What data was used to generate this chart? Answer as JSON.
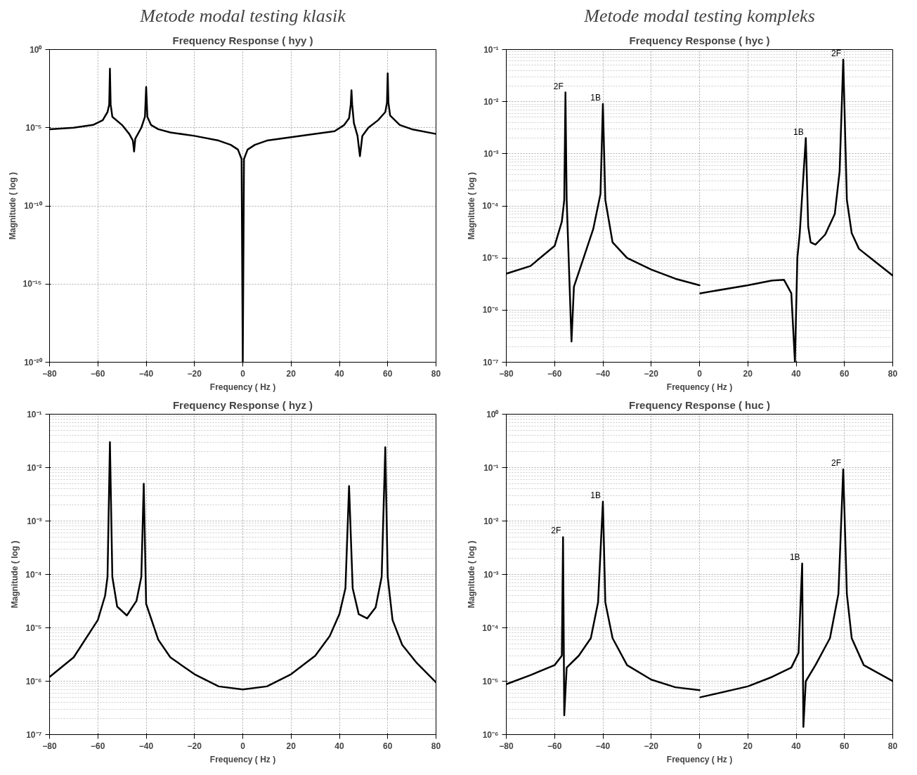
{
  "chart_data": [
    {
      "type": "line",
      "title": "Metode modal testing klasik",
      "subtitle": "Frequency Response ( hyy )",
      "xlabel": "Frequency ( Hz )",
      "ylabel": "Magnitude ( log )",
      "log": "y",
      "grid": true,
      "line_style": "solid",
      "xlim": [
        -80,
        80
      ],
      "xticks": [
        -80,
        -60,
        -40,
        -20,
        0,
        20,
        40,
        60,
        80
      ],
      "ylim": [
        1e-20,
        1
      ],
      "yticks": [
        {
          "value": 1e-20,
          "label": "10⁻²⁰"
        },
        {
          "value": 1e-15,
          "label": "10⁻¹⁵"
        },
        {
          "value": 1e-10,
          "label": "10⁻¹⁰"
        },
        {
          "value": 1e-05,
          "label": "10⁻⁵"
        },
        {
          "value": 1,
          "label": "10⁰"
        }
      ],
      "series": [
        {
          "color": "#000000",
          "x": [
            -80,
            -70,
            -62,
            -58,
            -56,
            -55.3,
            -55,
            -54.7,
            -54,
            -50,
            -47,
            -45.5,
            -45,
            -44.5,
            -42,
            -40.5,
            -40,
            -39.5,
            -38,
            -35,
            -30,
            -20,
            -10,
            -5,
            -2,
            -0.5,
            0,
            0.5,
            2,
            5,
            10,
            20,
            30,
            38,
            42,
            44,
            44.7,
            45,
            45.3,
            46,
            47.5,
            48.5,
            49.5,
            52,
            56,
            59,
            59.7,
            60,
            60.3,
            61,
            65,
            70,
            80
          ],
          "values": [
            8e-06,
            1e-05,
            1.5e-05,
            3e-05,
            0.0001,
            0.0003,
            0.06,
            0.0003,
            5e-05,
            1.5e-05,
            4e-06,
            1.5e-06,
            3e-07,
            2e-06,
            1e-05,
            5e-05,
            0.004,
            5e-05,
            1.5e-05,
            8e-06,
            5e-06,
            3e-06,
            1.5e-06,
            8e-07,
            4e-07,
            1e-07,
            1e-20,
            1e-07,
            4e-07,
            8e-07,
            1.5e-06,
            2.5e-06,
            4e-06,
            6e-06,
            1.5e-05,
            4e-05,
            0.0003,
            0.0025,
            0.0003,
            2e-05,
            3e-06,
            1.5e-07,
            3e-06,
            1e-05,
            3e-05,
            0.0001,
            0.0004,
            0.03,
            0.0004,
            6e-05,
            1.5e-05,
            8e-06,
            4e-06
          ]
        }
      ]
    },
    {
      "type": "line",
      "title": "Metode modal testing kompleks",
      "subtitle": "Frequency Response ( hyc )",
      "xlabel": "Frequency ( Hz )",
      "ylabel": "Magnitude ( log )",
      "log": "y",
      "grid": true,
      "line_style": "solid",
      "xlim": [
        -80,
        80
      ],
      "xticks": [
        -80,
        -60,
        -40,
        -20,
        0,
        20,
        40,
        60,
        80
      ],
      "ylim": [
        1e-07,
        0.1
      ],
      "yticks": [
        {
          "value": 1e-07,
          "label": "10⁻⁷"
        },
        {
          "value": 1e-06,
          "label": "10⁻⁶"
        },
        {
          "value": 1e-05,
          "label": "10⁻⁵"
        },
        {
          "value": 0.0001,
          "label": "10⁻⁴"
        },
        {
          "value": 0.001,
          "label": "10⁻³"
        },
        {
          "value": 0.01,
          "label": "10⁻²"
        },
        {
          "value": 0.1,
          "label": "10⁻¹"
        }
      ],
      "annotations": [
        {
          "text": "2F",
          "x": -55.5,
          "y": 0.015
        },
        {
          "text": "1B",
          "x": -40,
          "y": 0.009
        },
        {
          "text": "1B",
          "x": 44,
          "y": 0.002
        },
        {
          "text": "2F",
          "x": 59.5,
          "y": 0.064
        }
      ],
      "series": [
        {
          "color": "#000000",
          "x": [
            -80,
            -70,
            -60,
            -57,
            -56,
            -55.5,
            -55,
            -53,
            -52,
            -48,
            -44,
            -41,
            -40,
            -39,
            -36,
            -30,
            -20,
            -10,
            0,
            null,
            0.3,
            20,
            30,
            35,
            38,
            39.5,
            40.5,
            41.5,
            44,
            45,
            46,
            48,
            52,
            56,
            58,
            59.5,
            61,
            63,
            66,
            72,
            80
          ],
          "values": [
            5e-06,
            7e-06,
            1.7e-05,
            5e-05,
            0.00013,
            0.015,
            0.00013,
            2.5e-07,
            2.8e-06,
            1e-05,
            3.6e-05,
            0.00017,
            0.009,
            0.00013,
            2e-05,
            1e-05,
            6e-06,
            4e-06,
            3e-06,
            null,
            2.1e-06,
            3e-06,
            3.7e-06,
            3.8e-06,
            2.1e-06,
            1e-07,
            1e-05,
            3e-05,
            0.002,
            4e-05,
            2e-05,
            1.8e-05,
            2.8e-05,
            7e-05,
            0.00046,
            0.064,
            0.00013,
            3e-05,
            1.5e-05,
            9e-06,
            4.6e-06
          ]
        }
      ]
    },
    {
      "type": "line",
      "title": "Frequency Response ( hyz )",
      "xlabel": "Frequency ( Hz )",
      "ylabel": "Magnitude ( log )",
      "log": "y",
      "grid": true,
      "line_style": "solid",
      "xlim": [
        -80,
        80
      ],
      "xticks": [
        -80,
        -60,
        -40,
        -20,
        0,
        20,
        40,
        60,
        80
      ],
      "ylim": [
        1e-07,
        0.1
      ],
      "yticks": [
        {
          "value": 1e-07,
          "label": "10⁻⁷"
        },
        {
          "value": 1e-06,
          "label": "10⁻⁶"
        },
        {
          "value": 1e-05,
          "label": "10⁻⁵"
        },
        {
          "value": 0.0001,
          "label": "10⁻⁴"
        },
        {
          "value": 0.001,
          "label": "10⁻³"
        },
        {
          "value": 0.01,
          "label": "10⁻²"
        },
        {
          "value": 0.1,
          "label": "10⁻¹"
        }
      ],
      "series": [
        {
          "color": "#000000",
          "x": [
            -80,
            -70,
            -60,
            -57,
            -56,
            -55,
            -54,
            -52,
            -48,
            -44,
            -42,
            -41,
            -40,
            -35,
            -30,
            -20,
            -10,
            0,
            10,
            20,
            30,
            36,
            40,
            42.5,
            44,
            45.5,
            48,
            51.5,
            55,
            57.5,
            59,
            60,
            62,
            66,
            72,
            80
          ],
          "values": [
            1.2e-06,
            2.8e-06,
            1.4e-05,
            4e-05,
            9e-05,
            0.03,
            9e-05,
            2.5e-05,
            1.7e-05,
            3.2e-05,
            9e-05,
            0.005,
            2.8e-05,
            6e-06,
            2.8e-06,
            1.35e-06,
            8e-07,
            7e-07,
            8e-07,
            1.35e-06,
            3e-06,
            7e-06,
            1.8e-05,
            5.5e-05,
            0.0045,
            5.5e-05,
            1.8e-05,
            1.5e-05,
            2.4e-05,
            9e-05,
            0.024,
            9e-05,
            1.4e-05,
            4.8e-06,
            2.2e-06,
            9.5e-07
          ]
        }
      ]
    },
    {
      "type": "line",
      "title": "Frequency Response ( huc )",
      "xlabel": "Frequency ( Hz )",
      "ylabel": "Magnitude ( log )",
      "log": "y",
      "grid": true,
      "line_style": "solid",
      "xlim": [
        -80,
        80
      ],
      "xticks": [
        -80,
        -60,
        -40,
        -20,
        0,
        20,
        40,
        60,
        80
      ],
      "ylim": [
        1e-06,
        1
      ],
      "yticks": [
        {
          "value": 1e-06,
          "label": "10⁻⁶"
        },
        {
          "value": 1e-05,
          "label": "10⁻⁵"
        },
        {
          "value": 0.0001,
          "label": "10⁻⁴"
        },
        {
          "value": 0.001,
          "label": "10⁻³"
        },
        {
          "value": 0.01,
          "label": "10⁻²"
        },
        {
          "value": 0.1,
          "label": "10⁻¹"
        },
        {
          "value": 1,
          "label": "10⁰"
        }
      ],
      "annotations": [
        {
          "text": "2F",
          "x": -56.5,
          "y": 0.005
        },
        {
          "text": "1B",
          "x": -40,
          "y": 0.023
        },
        {
          "text": "1B",
          "x": 42.5,
          "y": 0.0016
        },
        {
          "text": "2F",
          "x": 59.5,
          "y": 0.093
        }
      ],
      "series": [
        {
          "color": "#000000",
          "x": [
            -80,
            -70,
            -60,
            -57,
            -56.5,
            -56,
            -55,
            -50,
            -45,
            -42,
            -40,
            -39,
            -36,
            -30,
            -20,
            -10,
            0,
            null,
            0.3,
            20,
            30,
            38,
            41,
            42.5,
            43,
            44,
            48,
            54,
            57.5,
            59.5,
            61,
            63,
            68,
            80
          ],
          "values": [
            8.8e-06,
            1.3e-05,
            2e-05,
            3e-05,
            0.005,
            2.3e-06,
            1.8e-05,
            3e-05,
            6.4e-05,
            0.0003,
            0.023,
            0.0003,
            6.4e-05,
            2e-05,
            1.07e-05,
            7.7e-06,
            6.8e-06,
            null,
            5e-06,
            8e-06,
            1.2e-05,
            1.8e-05,
            3.4e-05,
            0.0016,
            1.4e-06,
            1e-05,
            2e-05,
            6.4e-05,
            0.00043,
            0.093,
            0.00043,
            6.4e-05,
            2e-05,
            1e-05
          ]
        }
      ]
    }
  ]
}
